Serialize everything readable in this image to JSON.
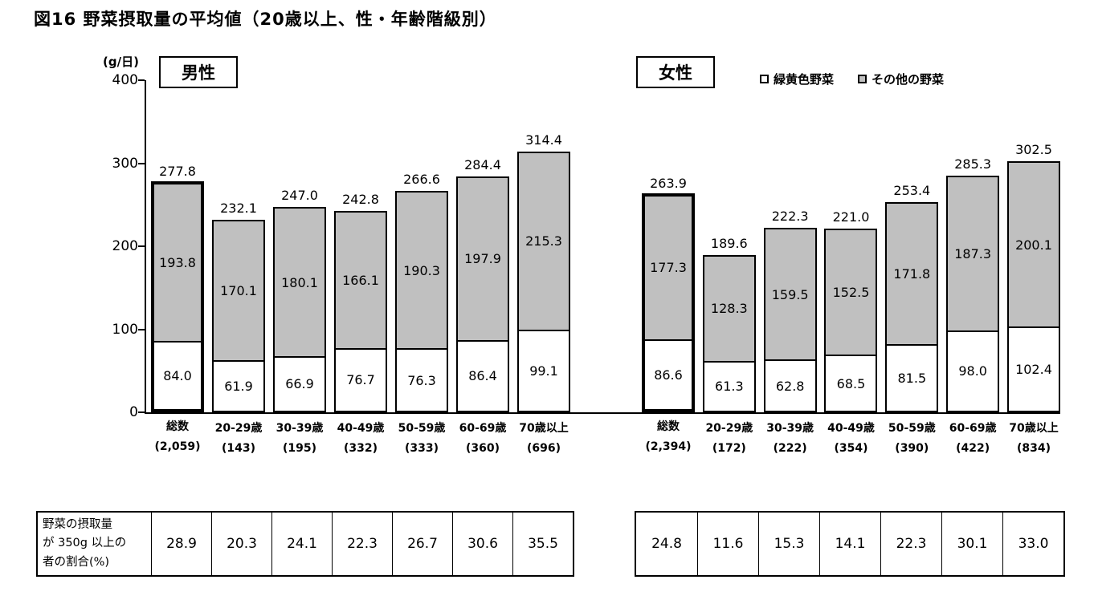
{
  "title": "図16 野菜摂取量の平均値（20歳以上、性・年齢階級別）",
  "y_axis": {
    "unit": "(g/日)",
    "max": 400,
    "ticks": [
      400,
      300,
      200,
      100,
      0
    ]
  },
  "legend": [
    {
      "label": "緑黄色野菜",
      "color": "#ffffff"
    },
    {
      "label": "その他の野菜",
      "color": "#c0c0c0"
    }
  ],
  "chart_data": {
    "type": "bar",
    "stacked": true,
    "ylabel": "(g/日)",
    "ylim": [
      0,
      400
    ],
    "grid": false,
    "legend_position": "top-right",
    "groups": [
      {
        "name": "男性",
        "categories": [
          "総数",
          "20-29歳",
          "30-39歳",
          "40-49歳",
          "50-59歳",
          "60-69歳",
          "70歳以上"
        ],
        "counts": [
          "(2,059)",
          "(143)",
          "(195)",
          "(332)",
          "(333)",
          "(360)",
          "(696)"
        ],
        "totals": [
          277.8,
          232.1,
          247.0,
          242.8,
          266.6,
          284.4,
          314.4
        ],
        "series": [
          {
            "name": "緑黄色野菜",
            "values": [
              84.0,
              61.9,
              66.9,
              76.7,
              76.3,
              86.4,
              99.1
            ]
          },
          {
            "name": "その他の野菜",
            "values": [
              193.8,
              170.1,
              180.1,
              166.1,
              190.3,
              197.9,
              215.3
            ]
          }
        ]
      },
      {
        "name": "女性",
        "categories": [
          "総数",
          "20-29歳",
          "30-39歳",
          "40-49歳",
          "50-59歳",
          "60-69歳",
          "70歳以上"
        ],
        "counts": [
          "(2,394)",
          "(172)",
          "(222)",
          "(354)",
          "(390)",
          "(422)",
          "(834)"
        ],
        "totals": [
          263.9,
          189.6,
          222.3,
          221.0,
          253.4,
          285.3,
          302.5
        ],
        "series": [
          {
            "name": "緑黄色野菜",
            "values": [
              86.6,
              61.3,
              62.8,
              68.5,
              81.5,
              98.0,
              102.4
            ]
          },
          {
            "name": "その他の野菜",
            "values": [
              177.3,
              128.3,
              159.5,
              152.5,
              171.8,
              187.3,
              200.1
            ]
          }
        ]
      }
    ]
  },
  "table": {
    "row_label": "野菜の摂取量\nが 350g 以上の\n者の割合(%)",
    "male_values": [
      28.9,
      20.3,
      24.1,
      22.3,
      26.7,
      30.6,
      35.5
    ],
    "female_values": [
      24.8,
      11.6,
      15.3,
      14.1,
      22.3,
      30.1,
      33.0
    ]
  }
}
